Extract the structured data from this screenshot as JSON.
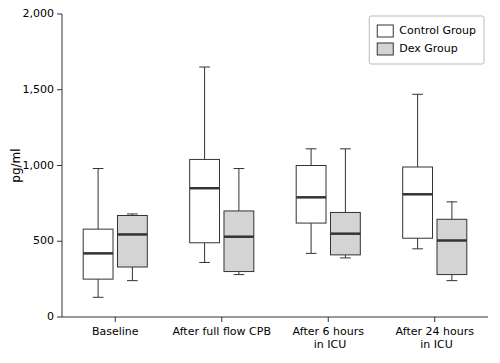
{
  "chart_data": {
    "type": "box",
    "categories": [
      "Baseline",
      "After full flow CPB",
      "After 6 hours in ICU",
      "After 24 hours in ICU"
    ],
    "series": [
      {
        "name": "Control Group",
        "color": "#ffffff",
        "values": [
          {
            "whisker_low": 130,
            "q1": 250,
            "median": 420,
            "q3": 580,
            "whisker_high": 980
          },
          {
            "whisker_low": 360,
            "q1": 490,
            "median": 850,
            "q3": 1040,
            "whisker_high": 1650
          },
          {
            "whisker_low": 420,
            "q1": 620,
            "median": 790,
            "q3": 1000,
            "whisker_high": 1110
          },
          {
            "whisker_low": 450,
            "q1": 520,
            "median": 810,
            "q3": 990,
            "whisker_high": 1470
          }
        ]
      },
      {
        "name": "Dex Group",
        "color": "#d4d4d4",
        "values": [
          {
            "whisker_low": 240,
            "q1": 330,
            "median": 545,
            "q3": 670,
            "whisker_high": 680
          },
          {
            "whisker_low": 280,
            "q1": 300,
            "median": 530,
            "q3": 700,
            "whisker_high": 980
          },
          {
            "whisker_low": 390,
            "q1": 410,
            "median": 550,
            "q3": 690,
            "whisker_high": 1110
          },
          {
            "whisker_low": 240,
            "q1": 280,
            "median": 505,
            "q3": 645,
            "whisker_high": 760
          }
        ]
      }
    ],
    "ylabel": "pg/ml",
    "ylim": [
      0,
      2000
    ],
    "yticks": [
      0,
      500,
      {
        "value": 1000,
        "label": "1,000"
      },
      {
        "value": 1500,
        "label": "1,500"
      },
      {
        "value": 2000,
        "label": "2,000"
      }
    ],
    "grid": false,
    "legend": "upper right"
  }
}
